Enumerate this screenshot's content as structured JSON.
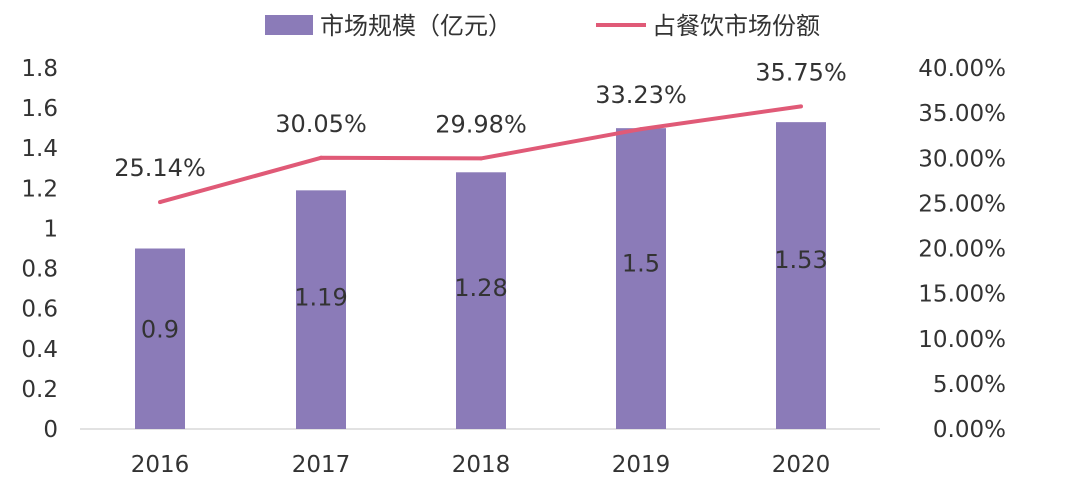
{
  "chart_data": {
    "type": "bar",
    "categories": [
      "2016",
      "2017",
      "2018",
      "2019",
      "2020"
    ],
    "series": [
      {
        "name": "市场规模（亿元）",
        "type": "bar",
        "axis": "left",
        "color": "#8b7bb8",
        "values": [
          0.9,
          1.19,
          1.28,
          1.5,
          1.53
        ],
        "labels": [
          "0.9",
          "1.19",
          "1.28",
          "1.5",
          "1.53"
        ]
      },
      {
        "name": "占餐饮市场份额",
        "type": "line",
        "axis": "right",
        "color": "#e05a77",
        "values": [
          25.14,
          30.05,
          29.98,
          33.23,
          35.75
        ],
        "labels": [
          "25.14%",
          "30.05%",
          "29.98%",
          "33.23%",
          "35.75%"
        ]
      }
    ],
    "y_left": {
      "min": 0,
      "max": 1.8,
      "ticks": [
        "0",
        "0.2",
        "0.4",
        "0.6",
        "0.8",
        "1",
        "1.2",
        "1.4",
        "1.6",
        "1.8"
      ]
    },
    "y_right": {
      "min": 0,
      "max": 40,
      "ticks": [
        "0.00%",
        "5.00%",
        "10.00%",
        "15.00%",
        "20.00%",
        "25.00%",
        "30.00%",
        "35.00%",
        "40.00%"
      ]
    },
    "legend_position": "top",
    "grid": false
  }
}
